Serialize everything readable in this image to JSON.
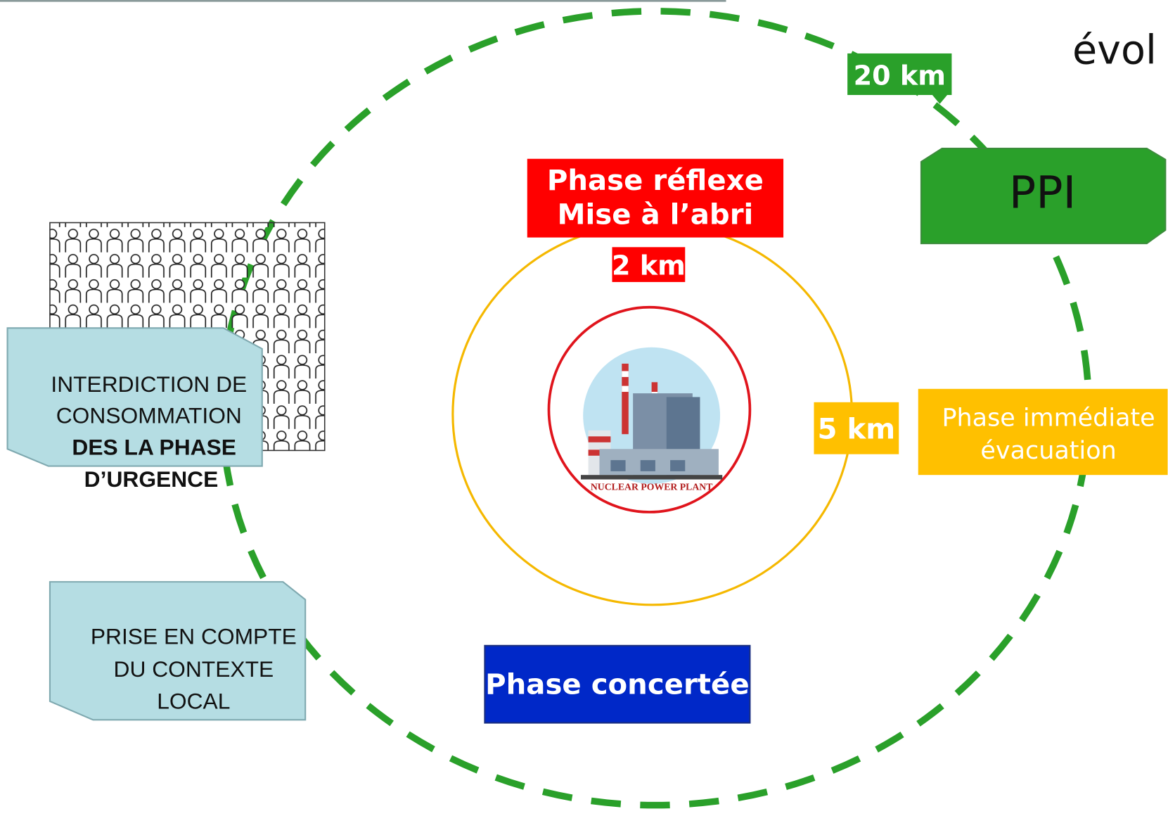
{
  "title_fragment": "évol",
  "ppi_zone": {
    "radius_label": "20 km",
    "label": "PPI"
  },
  "reflex_zone": {
    "lines": [
      "Phase réflexe",
      "Mise à l’abri"
    ],
    "radius_label": "2 km"
  },
  "immediate_zone": {
    "radius_label": "5 km",
    "lines": [
      "Phase immédiate",
      "évacuation"
    ]
  },
  "plant": {
    "label": "NUCLEAR POWER PLANT"
  },
  "notes": [
    {
      "lines": [
        "INTERDICTION DE",
        "CONSOMMATION"
      ],
      "bold_lines": [
        "DES LA PHASE",
        "D’URGENCE"
      ]
    },
    {
      "lines": [
        "PRISE EN COMPTE",
        "DU CONTEXTE",
        "LOCAL"
      ]
    }
  ],
  "concerted_phase": {
    "label": "Phase concertée"
  }
}
